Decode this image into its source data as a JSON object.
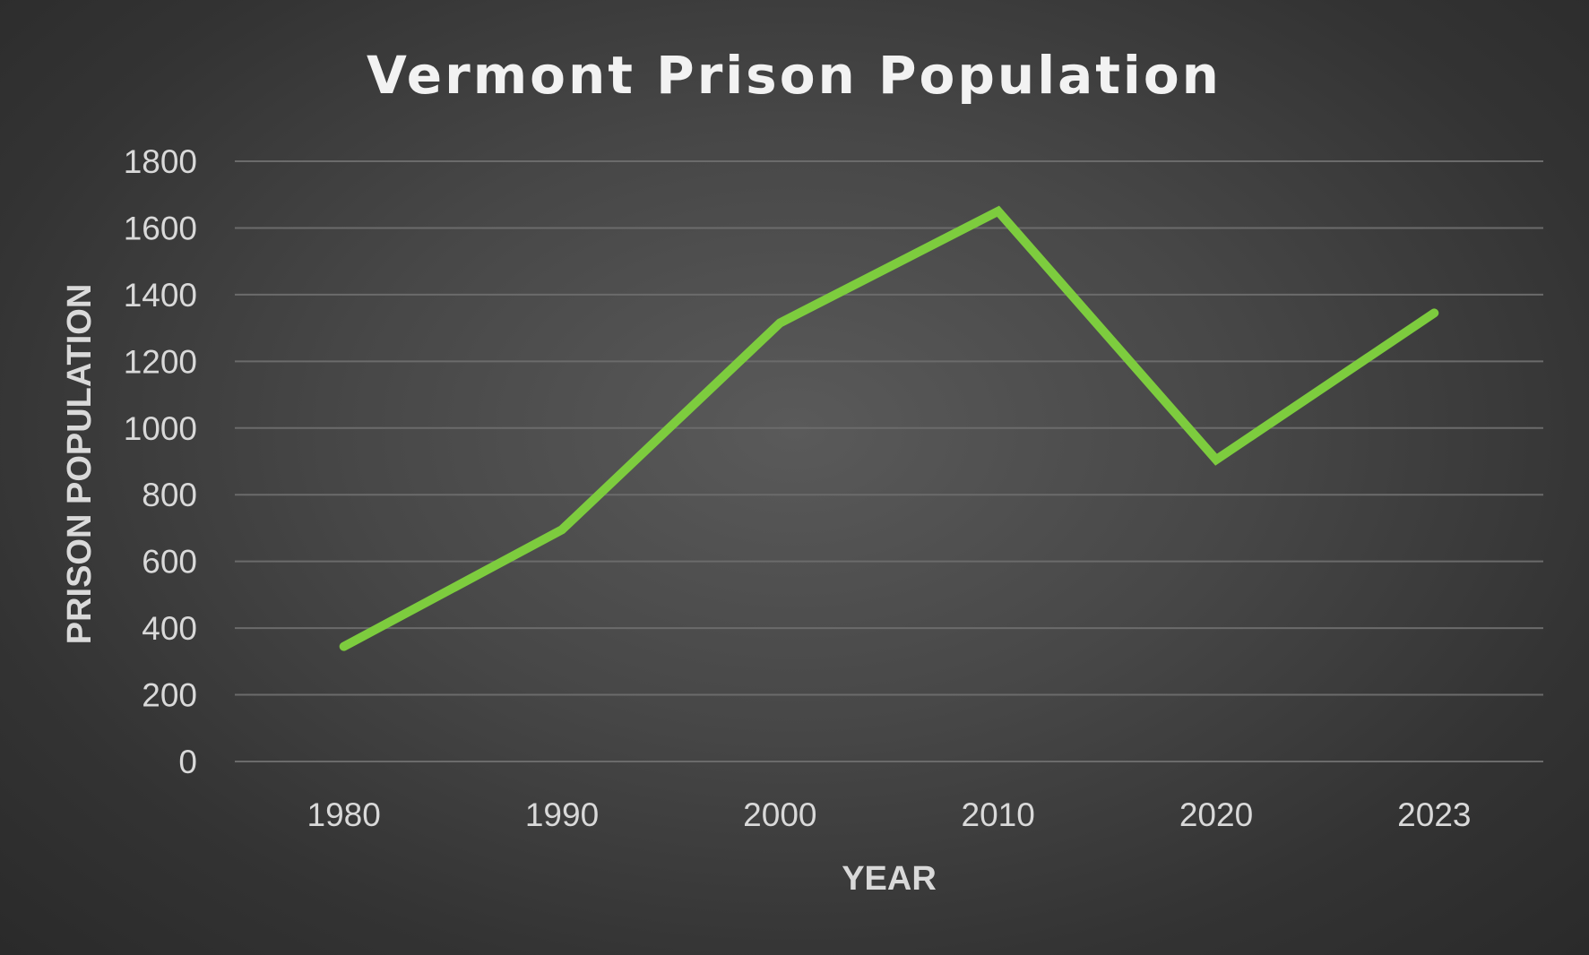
{
  "chart_data": {
    "type": "line",
    "title": "Vermont Prison Population",
    "xlabel": "YEAR",
    "ylabel": "PRISON POPULATION",
    "categories": [
      "1980",
      "1990",
      "2000",
      "2010",
      "2020",
      "2023"
    ],
    "yticks": [
      "0",
      "200",
      "400",
      "600",
      "800",
      "1000",
      "1200",
      "1400",
      "1600",
      "1800"
    ],
    "ylim": [
      0,
      1800
    ],
    "grid": true,
    "legend": "none",
    "series": [
      {
        "values": [
          345,
          695,
          1315,
          1650,
          905,
          1345
        ],
        "color": "#7dcc3e"
      }
    ]
  }
}
